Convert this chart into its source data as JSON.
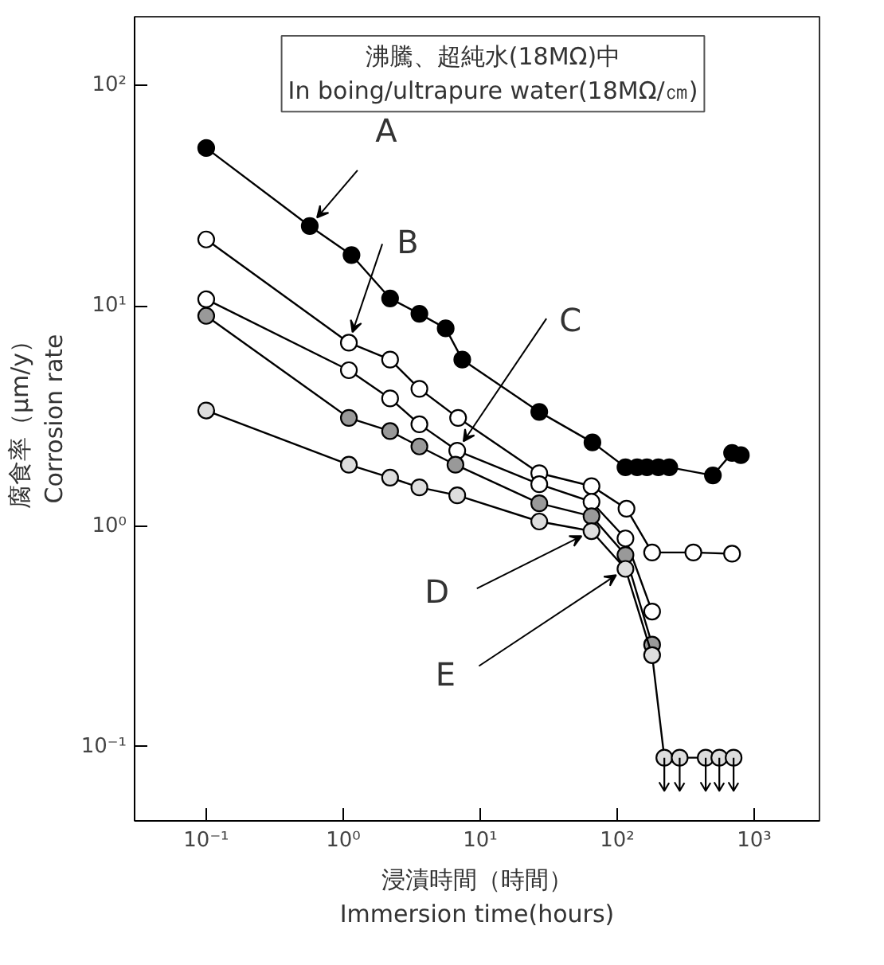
{
  "chart_data": {
    "type": "line",
    "title": "沸騰、超純水(18MΩ)中",
    "subtitle": "In boing/ultrapure water(18MΩ/㎝)",
    "xlabel": "浸漬時間（時間）\nImmersion time(hours)",
    "ylabel": "腐食率（μm/y）\nCorrosion rate",
    "log": "xy",
    "xlim": [
      0.03,
      3000
    ],
    "ylim": [
      0.046,
      205
    ],
    "xticks": [
      {
        "value": 0.1,
        "label": "10⁻¹"
      },
      {
        "value": 1,
        "label": "10⁰"
      },
      {
        "value": 10,
        "label": "10¹"
      },
      {
        "value": 100,
        "label": "10²"
      },
      {
        "value": 1000,
        "label": "10³"
      }
    ],
    "yticks": [
      {
        "value": 0.1,
        "label": "10⁻¹"
      },
      {
        "value": 1,
        "label": "10⁰"
      },
      {
        "value": 10,
        "label": "10¹"
      },
      {
        "value": 100,
        "label": "10²"
      }
    ],
    "grid": false,
    "line_style": "solid",
    "series": [
      {
        "color": "#000000",
        "marker": "circle",
        "x": [
          0.1,
          0.57,
          1.15,
          2.2,
          3.6,
          5.6,
          7.4,
          27,
          66,
          115,
          140,
          165,
          200,
          240,
          500,
          690,
          800
        ],
        "values": [
          52,
          23,
          17,
          10.8,
          9.2,
          7.9,
          5.7,
          3.3,
          2.4,
          1.85,
          1.85,
          1.85,
          1.85,
          1.85,
          1.7,
          2.15,
          2.1
        ]
      },
      {
        "color": "#ffffff",
        "marker": "circle",
        "x": [
          0.1,
          1.1,
          2.2,
          3.6,
          6.9,
          27,
          65,
          117,
          180,
          360,
          690
        ],
        "values": [
          20,
          6.8,
          5.7,
          4.2,
          3.1,
          1.74,
          1.52,
          1.2,
          0.76,
          0.76,
          0.75
        ]
      },
      {
        "color": "#ffffff",
        "marker": "circle",
        "x": [
          0.1,
          1.1,
          2.2,
          3.6,
          6.8,
          27,
          65,
          115,
          180
        ],
        "values": [
          10.7,
          5.1,
          3.8,
          2.9,
          2.2,
          1.55,
          1.29,
          0.88,
          0.41
        ]
      },
      {
        "color": "#999999",
        "marker": "circle",
        "x": [
          0.1,
          1.1,
          2.2,
          3.6,
          6.6,
          27,
          65,
          115,
          180
        ],
        "values": [
          9.0,
          3.1,
          2.7,
          2.3,
          1.9,
          1.27,
          1.11,
          0.74,
          0.29
        ]
      },
      {
        "color": "#dddddd",
        "marker": "circle",
        "x": [
          0.1,
          1.1,
          2.2,
          3.6,
          6.8,
          27,
          65,
          115,
          180,
          221,
          286,
          443,
          557,
          708
        ],
        "values": [
          3.35,
          1.9,
          1.66,
          1.5,
          1.38,
          1.05,
          0.95,
          0.64,
          0.26,
          0.089,
          0.089,
          0.089,
          0.089,
          0.089
        ],
        "errors": [
          null,
          null,
          null,
          null,
          null,
          null,
          null,
          null,
          null,
          [
            0.063,
            0.089
          ],
          [
            0.063,
            0.089
          ],
          [
            0.063,
            0.089
          ],
          [
            0.063,
            0.089
          ],
          [
            0.063,
            0.089
          ]
        ]
      }
    ],
    "annotations": [
      {
        "text": "A",
        "x": 0.57,
        "y": 23
      },
      {
        "text": "B",
        "x": 1.1,
        "y": 6.8
      },
      {
        "text": "C",
        "x": 6.8,
        "y": 2.2
      },
      {
        "text": "D",
        "x": 65,
        "y": 0.95
      },
      {
        "text": "E",
        "x": 115,
        "y": 0.64
      }
    ]
  }
}
